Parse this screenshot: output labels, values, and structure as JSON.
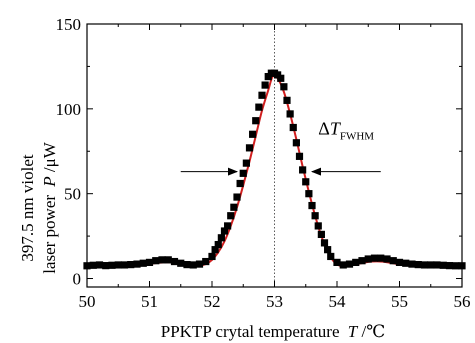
{
  "chart_data": {
    "type": "scatter",
    "title": "",
    "xlabel": {
      "main": "PPKTP crytal temperature",
      "symbol": "T",
      "unit": "/℃"
    },
    "ylabel": {
      "line1": "397.5  nm violet",
      "line2_main": "laser power",
      "symbol": "P",
      "unit": "/μW"
    },
    "xlim": [
      50,
      56
    ],
    "ylim": [
      -5,
      150
    ],
    "xticks": [
      "50",
      "51",
      "52",
      "53",
      "54",
      "55",
      "56"
    ],
    "yticks": [
      "0",
      "50",
      "100",
      "150"
    ],
    "grid": false,
    "series": [
      {
        "marker": "square",
        "color": "#000000",
        "points": [
          [
            50.0,
            7.5
          ],
          [
            50.1,
            7.8
          ],
          [
            50.2,
            8.0
          ],
          [
            50.3,
            7.6
          ],
          [
            50.4,
            7.8
          ],
          [
            50.5,
            8.0
          ],
          [
            50.6,
            8.0
          ],
          [
            50.7,
            8.2
          ],
          [
            50.8,
            8.5
          ],
          [
            50.9,
            9.0
          ],
          [
            51.0,
            9.5
          ],
          [
            51.1,
            10.5
          ],
          [
            51.2,
            11.0
          ],
          [
            51.3,
            11.0
          ],
          [
            51.4,
            10.0
          ],
          [
            51.5,
            9.0
          ],
          [
            51.6,
            8.2
          ],
          [
            51.7,
            8.0
          ],
          [
            51.8,
            8.5
          ],
          [
            51.9,
            10.0
          ],
          [
            52.0,
            13.0
          ],
          [
            52.05,
            17.0
          ],
          [
            52.1,
            20.0
          ],
          [
            52.15,
            24.0
          ],
          [
            52.2,
            28.0
          ],
          [
            52.25,
            31.0
          ],
          [
            52.3,
            37.0
          ],
          [
            52.35,
            42.0
          ],
          [
            52.4,
            48.0
          ],
          [
            52.45,
            56.0
          ],
          [
            52.5,
            62.0
          ],
          [
            52.55,
            68.0
          ],
          [
            52.6,
            77.0
          ],
          [
            52.65,
            85.0
          ],
          [
            52.7,
            93.0
          ],
          [
            52.75,
            101.0
          ],
          [
            52.8,
            108.0
          ],
          [
            52.85,
            114.0
          ],
          [
            52.9,
            119.0
          ],
          [
            52.95,
            121.0
          ],
          [
            53.0,
            121.0
          ],
          [
            53.05,
            120.0
          ],
          [
            53.1,
            118.0
          ],
          [
            53.15,
            113.0
          ],
          [
            53.2,
            105.0
          ],
          [
            53.25,
            97.0
          ],
          [
            53.3,
            89.0
          ],
          [
            53.35,
            80.0
          ],
          [
            53.4,
            72.0
          ],
          [
            53.45,
            64.0
          ],
          [
            53.5,
            57.0
          ],
          [
            53.55,
            50.0
          ],
          [
            53.6,
            43.0
          ],
          [
            53.65,
            37.0
          ],
          [
            53.7,
            31.0
          ],
          [
            53.75,
            26.0
          ],
          [
            53.8,
            21.0
          ],
          [
            53.85,
            17.0
          ],
          [
            53.9,
            13.0
          ],
          [
            54.0,
            9.5
          ],
          [
            54.1,
            8.0
          ],
          [
            54.2,
            8.5
          ],
          [
            54.3,
            9.5
          ],
          [
            54.4,
            10.5
          ],
          [
            54.5,
            11.5
          ],
          [
            54.6,
            12.0
          ],
          [
            54.7,
            12.0
          ],
          [
            54.8,
            11.5
          ],
          [
            54.9,
            10.5
          ],
          [
            55.0,
            9.5
          ],
          [
            55.1,
            9.0
          ],
          [
            55.2,
            8.5
          ],
          [
            55.3,
            8.2
          ],
          [
            55.4,
            8.0
          ],
          [
            55.5,
            8.0
          ],
          [
            55.6,
            8.0
          ],
          [
            55.7,
            7.8
          ],
          [
            55.8,
            7.6
          ],
          [
            55.9,
            7.5
          ],
          [
            56.0,
            7.5
          ]
        ]
      },
      {
        "marker": "line",
        "color": "#d21f1f",
        "points": [
          [
            50.0,
            6.5
          ],
          [
            50.25,
            6.6
          ],
          [
            50.5,
            6.8
          ],
          [
            50.75,
            7.3
          ],
          [
            51.0,
            8.6
          ],
          [
            51.15,
            9.3
          ],
          [
            51.3,
            9.5
          ],
          [
            51.45,
            9.0
          ],
          [
            51.6,
            7.8
          ],
          [
            51.75,
            7.2
          ],
          [
            51.9,
            8.5
          ],
          [
            52.0,
            11.0
          ],
          [
            52.1,
            15.5
          ],
          [
            52.2,
            22.0
          ],
          [
            52.3,
            31.0
          ],
          [
            52.4,
            42.0
          ],
          [
            52.5,
            55.0
          ],
          [
            52.6,
            69.0
          ],
          [
            52.7,
            84.0
          ],
          [
            52.8,
            99.0
          ],
          [
            52.9,
            111.0
          ],
          [
            52.97,
            119.0
          ],
          [
            53.05,
            118.0
          ],
          [
            53.15,
            110.0
          ],
          [
            53.25,
            97.0
          ],
          [
            53.35,
            82.0
          ],
          [
            53.45,
            66.0
          ],
          [
            53.55,
            51.0
          ],
          [
            53.65,
            37.0
          ],
          [
            53.75,
            25.0
          ],
          [
            53.85,
            16.0
          ],
          [
            53.95,
            10.0
          ],
          [
            54.05,
            7.5
          ],
          [
            54.15,
            7.2
          ],
          [
            54.3,
            8.3
          ],
          [
            54.5,
            9.8
          ],
          [
            54.65,
            10.1
          ],
          [
            54.8,
            9.6
          ],
          [
            55.0,
            8.3
          ],
          [
            55.25,
            7.3
          ],
          [
            55.5,
            6.8
          ],
          [
            55.75,
            6.5
          ],
          [
            56.0,
            6.4
          ]
        ]
      }
    ],
    "reference_line": {
      "x": 53.0,
      "style": "dotted"
    },
    "annotation": {
      "main": "ΔT",
      "sub": "FWHM",
      "y": 63,
      "left_arrow_x": [
        51.5,
        52.4
      ],
      "right_arrow_x": [
        54.7,
        53.6
      ],
      "text_x": 53.7,
      "text_y": 85
    }
  }
}
